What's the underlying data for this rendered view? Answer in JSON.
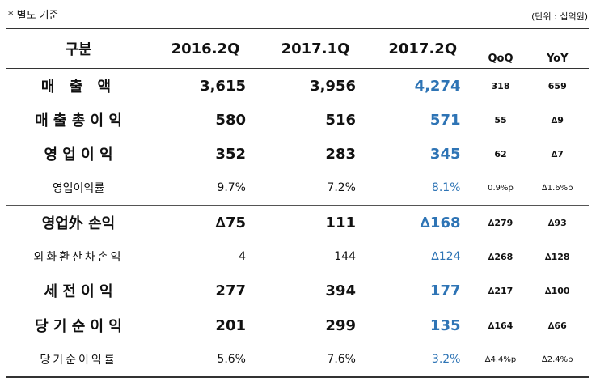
{
  "note": "* 별도 기준",
  "unit": "(단위 : 십억원)",
  "header": {
    "col0": "구분",
    "col1": "2016.2Q",
    "col2": "2017.1Q",
    "col3": "2017.2Q",
    "col4": "QoQ",
    "col5": "YoY"
  },
  "rows": [
    {
      "label": "매  출  액",
      "v1": "3,615",
      "v2": "3,956",
      "v3": "4,274",
      "qoq": "318",
      "yoy": "659"
    },
    {
      "label": "매 출 총 이 익",
      "v1": "580",
      "v2": "516",
      "v3": "571",
      "qoq": "55",
      "yoy": "∆9"
    },
    {
      "label": "영 업 이 익",
      "v1": "352",
      "v2": "283",
      "v3": "345",
      "qoq": "62",
      "yoy": "∆7"
    },
    {
      "label": "영업이익률",
      "v1": "9.7%",
      "v2": "7.2%",
      "v3": "8.1%",
      "qoq": "0.9%p",
      "yoy": "∆1.6%p"
    },
    {
      "label": "영업外 손익",
      "v1": "∆75",
      "v2": "111",
      "v3": "∆168",
      "qoq": "∆279",
      "yoy": "∆93"
    },
    {
      "label": "외화환산차손익",
      "v1": "4",
      "v2": "144",
      "v3": "∆124",
      "qoq": "∆268",
      "yoy": "∆128"
    },
    {
      "label": "세 전 이 익",
      "v1": "277",
      "v2": "394",
      "v3": "177",
      "qoq": "∆217",
      "yoy": "∆100"
    },
    {
      "label": "당 기 순 이 익",
      "v1": "201",
      "v2": "299",
      "v3": "135",
      "qoq": "∆164",
      "yoy": "∆66"
    },
    {
      "label": "당기순이익률",
      "v1": "5.6%",
      "v2": "7.6%",
      "v3": "3.2%",
      "qoq": "∆4.4%p",
      "yoy": "∆2.4%p"
    }
  ],
  "colors": {
    "highlight": "#2e74b5"
  }
}
